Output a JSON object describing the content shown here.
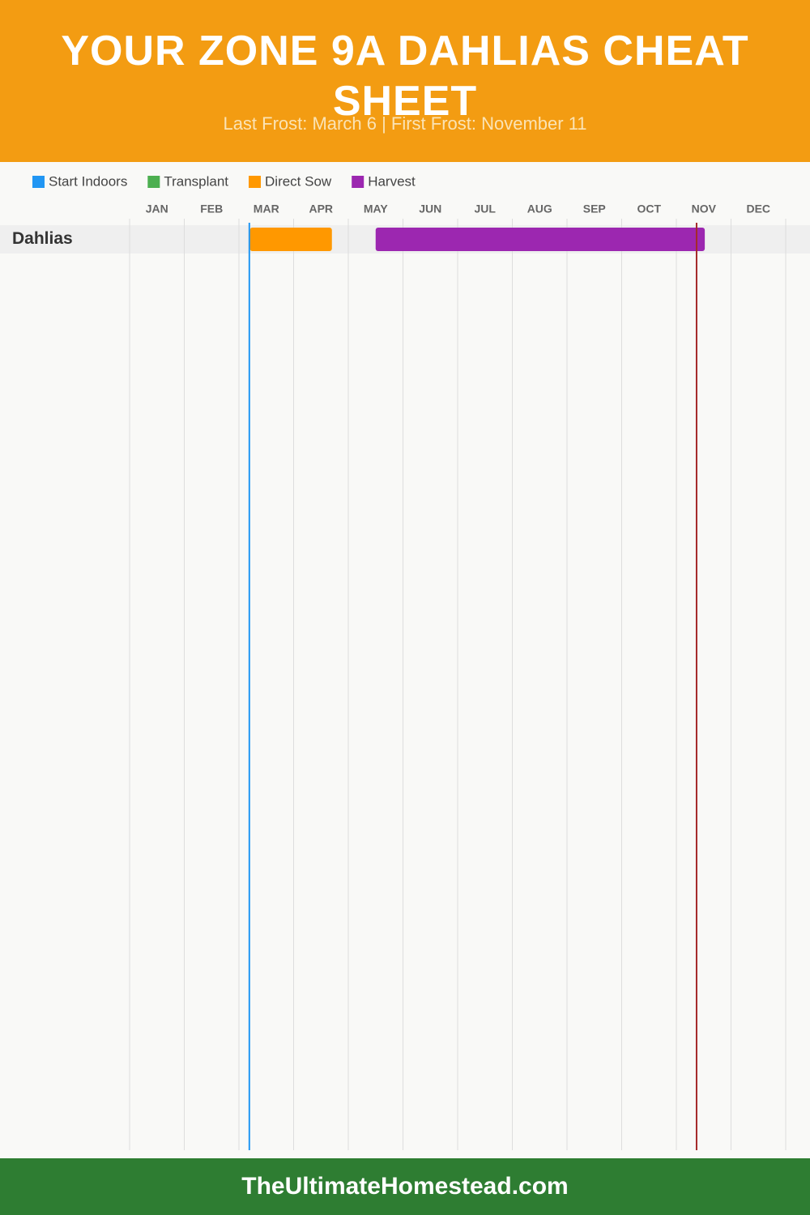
{
  "header": {
    "title": "YOUR ZONE 9A DAHLIAS CHEAT SHEET",
    "subtitle": "Last Frost: March 6 | First Frost: November 11"
  },
  "chart_data": {
    "type": "gantt",
    "categories": [
      "JAN",
      "FEB",
      "MAR",
      "APR",
      "MAY",
      "JUN",
      "JUL",
      "AUG",
      "SEP",
      "OCT",
      "NOV",
      "DEC"
    ],
    "xlim": [
      0,
      12
    ],
    "series": [
      {
        "name": "Start Indoors",
        "color": "#2196f3"
      },
      {
        "name": "Transplant",
        "color": "#4caf50"
      },
      {
        "name": "Direct Sow",
        "color": "#ff9800"
      },
      {
        "name": "Harvest",
        "color": "#9c27b0"
      }
    ],
    "rows": [
      {
        "label": "Dahlias",
        "bars": [
          {
            "series": 2,
            "start": 2.2,
            "end": 3.7
          },
          {
            "series": 3,
            "start": 4.5,
            "end": 10.52
          }
        ]
      }
    ],
    "frost_lines": [
      {
        "value": 2.19,
        "color": "#2196f3"
      },
      {
        "value": 10.37,
        "color": "#a52a2a"
      }
    ],
    "grid": true
  },
  "footer": {
    "text": "TheUltimateHomestead.com"
  }
}
